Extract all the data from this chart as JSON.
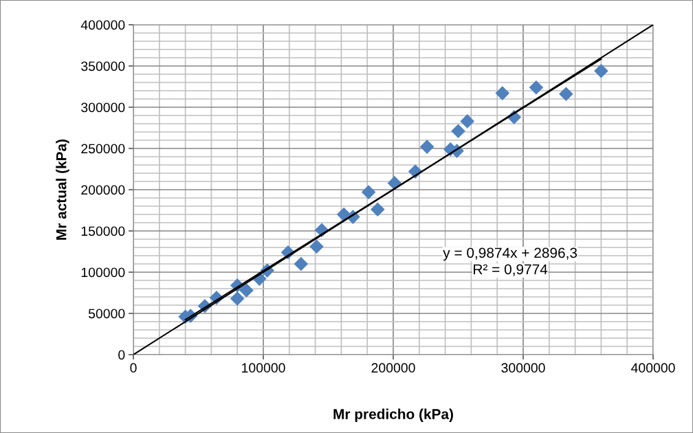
{
  "chart_data": {
    "type": "scatter",
    "xlabel": "Mr predicho (kPa)",
    "ylabel": "Mr actual (kPa)",
    "xlim": [
      0,
      400000
    ],
    "ylim": [
      0,
      400000
    ],
    "xticks": [
      0,
      100000,
      200000,
      300000,
      400000
    ],
    "yticks": [
      0,
      50000,
      100000,
      150000,
      200000,
      250000,
      300000,
      350000,
      400000
    ],
    "grid": true,
    "legend": false,
    "series": [
      {
        "marker": "diamond",
        "color": "#4f81bd",
        "x": [
          40000,
          44000,
          55000,
          64000,
          80000,
          80000,
          87000,
          97000,
          103000,
          119000,
          129000,
          141000,
          145000,
          162000,
          169000,
          181000,
          188000,
          201000,
          217000,
          226000,
          244000,
          249000,
          250000,
          257000,
          284000,
          293000,
          310000,
          333000,
          360000
        ],
        "values": [
          46000,
          47000,
          59000,
          69000,
          68000,
          84000,
          78000,
          92000,
          102000,
          124000,
          110000,
          131000,
          151000,
          170000,
          167000,
          197000,
          176000,
          208000,
          222000,
          252000,
          249000,
          247000,
          271000,
          283000,
          317000,
          288000,
          324000,
          316000,
          344000
        ]
      },
      {
        "type": "line",
        "marker": "none",
        "color": "#000000",
        "x": [
          0,
          400000
        ],
        "values": [
          0,
          400000
        ]
      },
      {
        "type": "line",
        "marker": "none",
        "color": "#000000",
        "x": [
          40000,
          360000
        ],
        "values": [
          42400,
          358400
        ]
      }
    ],
    "annotations": [
      "y = 0,9874x + 2896,3",
      "R² = 0,9774"
    ]
  }
}
